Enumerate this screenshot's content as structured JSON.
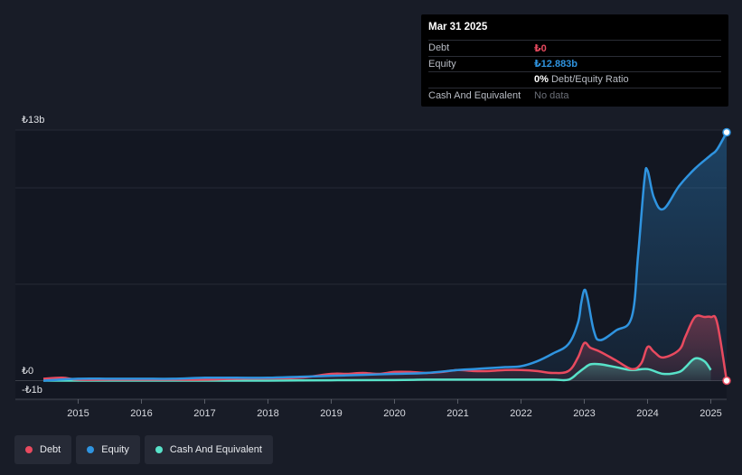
{
  "colors": {
    "background": "#181c27",
    "debt": "#e84a5f",
    "equity": "#2f94e0",
    "cash": "#58e2c9",
    "grid": "#2a2e3a"
  },
  "tooltip": {
    "date": "Mar 31 2025",
    "rows": [
      {
        "label": "Debt",
        "value": "₺0",
        "color": "#e84a5f"
      },
      {
        "label": "Equity",
        "value": "₺12.883b",
        "color": "#2f94e0"
      },
      {
        "label": "",
        "value_bold": "0%",
        "value": " Debt/Equity Ratio",
        "color": "#ffffff"
      },
      {
        "label": "Cash And Equivalent",
        "value": "No data",
        "color": "#6b6f78"
      }
    ]
  },
  "legend": [
    {
      "name": "Debt",
      "color": "#e84a5f"
    },
    {
      "name": "Equity",
      "color": "#2f94e0"
    },
    {
      "name": "Cash And Equivalent",
      "color": "#58e2c9"
    }
  ],
  "chart_data": {
    "type": "line",
    "y_tick_labels": [
      "₺13b",
      "₺0",
      "-₺1b"
    ],
    "y_ticks": [
      13,
      0,
      -1
    ],
    "ylim": [
      -1,
      13
    ],
    "xlim": [
      2014.45,
      2025.25
    ],
    "x_tick_labels": [
      "2015",
      "2016",
      "2017",
      "2018",
      "2019",
      "2020",
      "2021",
      "2022",
      "2023",
      "2024",
      "2025"
    ],
    "x_ticks": [
      2015,
      2016,
      2017,
      2018,
      2019,
      2020,
      2021,
      2022,
      2023,
      2024,
      2025
    ],
    "grid": true,
    "legend_position": "bottom-left",
    "series": [
      {
        "name": "Debt",
        "key": "debt",
        "x": [
          2014.45,
          2014.75,
          2015.0,
          2015.5,
          2016.0,
          2016.5,
          2017.0,
          2017.5,
          2018.0,
          2018.5,
          2019.0,
          2019.25,
          2019.5,
          2019.75,
          2020.0,
          2020.25,
          2020.5,
          2020.75,
          2021.0,
          2021.25,
          2021.5,
          2021.75,
          2022.0,
          2022.25,
          2022.5,
          2022.75,
          2022.9,
          2023.0,
          2023.1,
          2023.25,
          2023.5,
          2023.75,
          2023.9,
          2024.0,
          2024.1,
          2024.25,
          2024.5,
          2024.6,
          2024.75,
          2024.9,
          2025.0,
          2025.1,
          2025.25
        ],
        "y": [
          0.1,
          0.15,
          0.05,
          0.05,
          0.05,
          0.05,
          0.05,
          0.1,
          0.12,
          0.15,
          0.35,
          0.35,
          0.4,
          0.35,
          0.45,
          0.45,
          0.4,
          0.45,
          0.55,
          0.5,
          0.5,
          0.55,
          0.55,
          0.5,
          0.4,
          0.5,
          1.2,
          1.95,
          1.7,
          1.5,
          1.05,
          0.6,
          0.9,
          1.75,
          1.5,
          1.2,
          1.6,
          2.3,
          3.3,
          3.3,
          3.3,
          3.0,
          0.0
        ]
      },
      {
        "name": "Equity",
        "key": "equity",
        "x": [
          2014.45,
          2015.0,
          2015.5,
          2016.0,
          2016.5,
          2017.0,
          2017.5,
          2018.0,
          2018.5,
          2019.0,
          2019.5,
          2020.0,
          2020.5,
          2021.0,
          2021.25,
          2021.5,
          2021.75,
          2022.0,
          2022.25,
          2022.5,
          2022.75,
          2022.9,
          2022.95,
          2023.0,
          2023.05,
          2023.15,
          2023.25,
          2023.5,
          2023.75,
          2023.85,
          2023.95,
          2024.0,
          2024.1,
          2024.25,
          2024.5,
          2024.75,
          2025.0,
          2025.1,
          2025.25
        ],
        "y": [
          0.0,
          0.1,
          0.1,
          0.1,
          0.1,
          0.15,
          0.15,
          0.15,
          0.2,
          0.25,
          0.3,
          0.35,
          0.4,
          0.55,
          0.6,
          0.65,
          0.7,
          0.75,
          1.0,
          1.4,
          1.9,
          3.0,
          4.0,
          4.7,
          4.3,
          2.6,
          2.1,
          2.6,
          3.3,
          6.5,
          10.4,
          10.9,
          9.5,
          8.9,
          10.1,
          11.0,
          11.7,
          12.0,
          12.883
        ]
      },
      {
        "name": "Cash And Equivalent",
        "key": "cash",
        "x": [
          2014.45,
          2015.0,
          2016.0,
          2017.0,
          2018.0,
          2019.0,
          2020.0,
          2020.5,
          2021.0,
          2021.5,
          2022.0,
          2022.5,
          2022.75,
          2022.9,
          2023.0,
          2023.1,
          2023.25,
          2023.5,
          2023.75,
          2024.0,
          2024.25,
          2024.5,
          2024.6,
          2024.75,
          2024.9,
          2025.0
        ],
        "y": [
          0.0,
          0.0,
          0.0,
          0.0,
          0.0,
          0.02,
          0.03,
          0.05,
          0.05,
          0.05,
          0.05,
          0.05,
          0.05,
          0.4,
          0.65,
          0.85,
          0.85,
          0.7,
          0.55,
          0.6,
          0.35,
          0.45,
          0.7,
          1.15,
          1.0,
          0.55
        ]
      }
    ]
  }
}
